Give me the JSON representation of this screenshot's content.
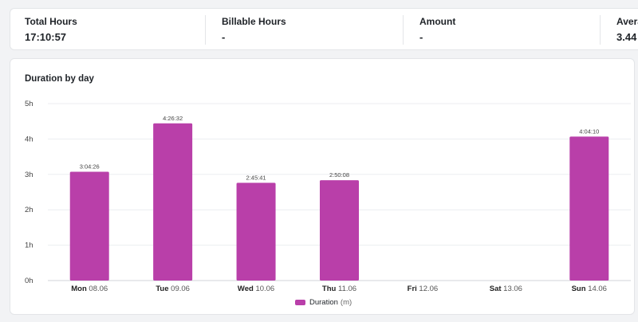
{
  "stats": [
    {
      "label": "Total Hours",
      "value": "17:10:57"
    },
    {
      "label": "Billable Hours",
      "value": "-"
    },
    {
      "label": "Amount",
      "value": "-"
    },
    {
      "label": "Average",
      "value": "3.44"
    }
  ],
  "chart_card": {
    "title": "Duration by day"
  },
  "chart_data": {
    "type": "bar",
    "title": "Duration by day",
    "categories": [
      {
        "day": "Mon",
        "date": "08.06"
      },
      {
        "day": "Tue",
        "date": "09.06"
      },
      {
        "day": "Wed",
        "date": "10.06"
      },
      {
        "day": "Thu",
        "date": "11.06"
      },
      {
        "day": "Fri",
        "date": "12.06"
      },
      {
        "day": "Sat",
        "date": "13.06"
      },
      {
        "day": "Sun",
        "date": "14.06"
      }
    ],
    "values_hours": [
      3.0739,
      4.4422,
      2.7614,
      2.8356,
      0,
      0,
      4.0694
    ],
    "data_labels": [
      "3:04:26",
      "4:26:32",
      "2:45:41",
      "2:50:08",
      "",
      "",
      "4:04:10"
    ],
    "y_ticks": [
      "0h",
      "1h",
      "2h",
      "3h",
      "4h",
      "5h"
    ],
    "ylim": [
      0,
      5
    ],
    "grid": true,
    "bar_color": "#b93fa9",
    "legend": {
      "label": "Duration",
      "unit": "(m)",
      "position": "bottom-center"
    }
  }
}
